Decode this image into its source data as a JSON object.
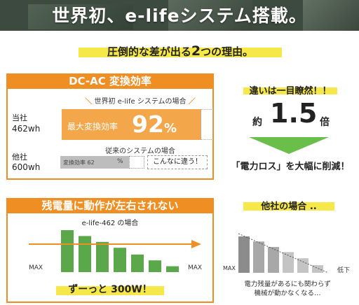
{
  "banner": {
    "title": "世界初、e-lifeシステム搭載。"
  },
  "reasons": {
    "pre": "圧倒的な差が出る",
    "num": "2",
    "post": "つの理由。"
  },
  "efficiency": {
    "title": "DC-AC 変換効率",
    "ours_caption": "世界初 e-life システムの場合",
    "ours_label": "当社",
    "ours_wh": "462wh",
    "ours_bar_label": "最大変換効率",
    "ours_value": "92",
    "ours_unit": "%",
    "ours_fill": 0.92,
    "other_caption": "従来のシステムの場合",
    "other_label": "他社",
    "other_wh": "600wh",
    "other_bar_label": "変換効率 62",
    "other_unit": "%",
    "other_fill": 0.62,
    "callout": "こんなに違う！"
  },
  "difference": {
    "title": "違いは一目瞭然！！",
    "prefix": "約",
    "ratio": "1.5",
    "suffix": "倍",
    "loss_text": "「電力ロス」を大幅に削減！"
  },
  "remaining": {
    "title": "残電量に動作が左右されない",
    "chart_caption": "e-life-462 の場合",
    "max_left": "MAX",
    "max_right": "MAX",
    "result": "ずーっと 300W！"
  },
  "others": {
    "title": "他社の場合 ..",
    "low_label": "低下",
    "max_label": "MAX",
    "note_line1": "電力残量があるにも関わらず",
    "note_line2": "機械が動かなくなる…"
  },
  "colors": {
    "accent": "#ef8e22",
    "highlight": "#f7e84a",
    "green": "#5aa84a",
    "arrow_green": "#6abf4b",
    "grey": "#9e9e9e"
  },
  "chart_data": [
    {
      "type": "bar",
      "title": "e-life-462 の場合",
      "values": [
        1.0,
        0.86,
        0.72,
        0.58,
        0.42,
        0.28,
        0.14
      ]
    },
    {
      "type": "bar",
      "title": "他社の場合 ..",
      "values": [
        1.0,
        0.86,
        0.71,
        0.57,
        0.4,
        0.21
      ]
    }
  ]
}
